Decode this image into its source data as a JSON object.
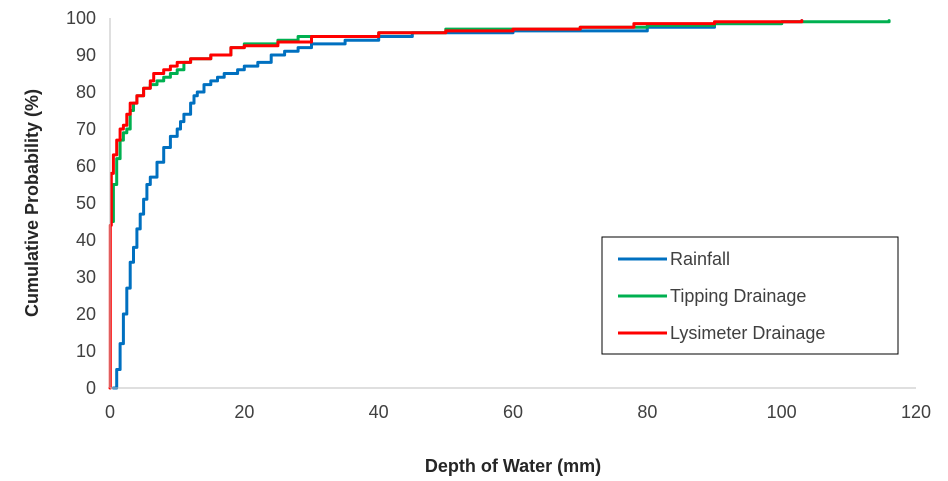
{
  "chart_data": {
    "type": "line",
    "title": "",
    "xlabel": "Depth of Water (mm)",
    "ylabel": "Cumulative Probability  (%)",
    "xlim": [
      0,
      120
    ],
    "ylim": [
      0,
      100
    ],
    "xticks": [
      "0",
      "20",
      "40",
      "60",
      "80",
      "100",
      "120"
    ],
    "yticks": [
      "0",
      "10",
      "20",
      "30",
      "40",
      "50",
      "60",
      "70",
      "80",
      "90",
      "100"
    ],
    "grid": false,
    "legend": "bottom-right",
    "series": [
      {
        "name": "Rainfall",
        "color": "#0070C0",
        "points": [
          [
            0.5,
            0
          ],
          [
            1,
            5
          ],
          [
            1.5,
            12
          ],
          [
            2,
            20
          ],
          [
            2.5,
            27
          ],
          [
            3,
            34
          ],
          [
            3.5,
            38
          ],
          [
            4,
            43
          ],
          [
            4.5,
            47
          ],
          [
            5,
            51
          ],
          [
            5.5,
            55
          ],
          [
            6,
            57
          ],
          [
            7,
            61
          ],
          [
            8,
            65
          ],
          [
            9,
            68
          ],
          [
            10,
            70
          ],
          [
            10.5,
            72
          ],
          [
            11,
            74
          ],
          [
            12,
            77
          ],
          [
            12.5,
            79
          ],
          [
            13,
            80
          ],
          [
            14,
            82
          ],
          [
            15,
            83
          ],
          [
            16,
            84
          ],
          [
            17,
            85
          ],
          [
            18,
            85
          ],
          [
            19,
            86
          ],
          [
            20,
            87
          ],
          [
            22,
            88
          ],
          [
            24,
            90
          ],
          [
            26,
            91
          ],
          [
            28,
            92
          ],
          [
            30,
            93
          ],
          [
            35,
            94
          ],
          [
            40,
            95
          ],
          [
            45,
            96
          ],
          [
            60,
            96.5
          ],
          [
            80,
            97.5
          ],
          [
            90,
            98.5
          ],
          [
            100,
            99
          ],
          [
            103,
            99.3
          ]
        ]
      },
      {
        "name": "Tipping Drainage",
        "color": "#00B050",
        "points": [
          [
            0.3,
            45
          ],
          [
            0.5,
            55
          ],
          [
            1,
            62
          ],
          [
            1.5,
            67
          ],
          [
            2,
            69
          ],
          [
            2.5,
            70
          ],
          [
            3,
            75
          ],
          [
            3.5,
            77
          ],
          [
            4,
            79
          ],
          [
            5,
            81
          ],
          [
            6,
            82
          ],
          [
            7,
            83
          ],
          [
            8,
            84
          ],
          [
            9,
            85
          ],
          [
            10,
            86
          ],
          [
            11,
            88
          ],
          [
            12,
            89
          ],
          [
            15,
            90
          ],
          [
            18,
            92
          ],
          [
            20,
            93
          ],
          [
            25,
            94
          ],
          [
            28,
            95
          ],
          [
            30,
            95
          ],
          [
            40,
            96
          ],
          [
            50,
            97
          ],
          [
            70,
            97.5
          ],
          [
            80,
            98
          ],
          [
            90,
            98.5
          ],
          [
            100,
            99
          ],
          [
            116,
            99.3
          ]
        ]
      },
      {
        "name": "Lysimeter Drainage",
        "color": "#FF0000",
        "points": [
          [
            0,
            0
          ],
          [
            0.05,
            44
          ],
          [
            0.2,
            58
          ],
          [
            0.5,
            63
          ],
          [
            1,
            67
          ],
          [
            1.5,
            70
          ],
          [
            2,
            71
          ],
          [
            2.5,
            74
          ],
          [
            3,
            77
          ],
          [
            4,
            79
          ],
          [
            5,
            81
          ],
          [
            6,
            83
          ],
          [
            6.5,
            85
          ],
          [
            8,
            86
          ],
          [
            9,
            87
          ],
          [
            10,
            88
          ],
          [
            12,
            89
          ],
          [
            15,
            90
          ],
          [
            18,
            92
          ],
          [
            20,
            92.5
          ],
          [
            25,
            93.5
          ],
          [
            30,
            95
          ],
          [
            40,
            96
          ],
          [
            50,
            96.5
          ],
          [
            60,
            97
          ],
          [
            70,
            97.5
          ],
          [
            78,
            98.5
          ],
          [
            90,
            99
          ],
          [
            103,
            99.3
          ]
        ]
      }
    ]
  }
}
